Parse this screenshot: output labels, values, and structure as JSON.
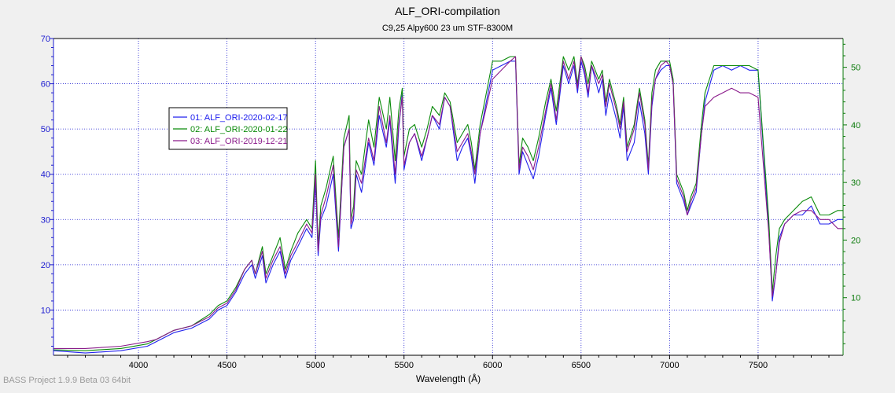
{
  "window": {
    "footer_text": "BASS Project 1.9.9 Beta 03 64bit"
  },
  "chart_data": {
    "type": "line",
    "title": "ALF_ORI-compilation",
    "subtitle": "C9,25 Alpy600 23 um STF-8300M",
    "xlabel": "Wavelength (Å)",
    "xlim": [
      3520,
      7980
    ],
    "ylim_left": [
      0,
      70
    ],
    "ylim_right": [
      0,
      55
    ],
    "x_ticks": [
      "4000",
      "4500",
      "5000",
      "5500",
      "6000",
      "6500",
      "7000",
      "7500"
    ],
    "x_tick_values": [
      4000,
      4500,
      5000,
      5500,
      6000,
      6500,
      7000,
      7500
    ],
    "y_ticks_left": [
      "10",
      "20",
      "30",
      "40",
      "50",
      "60",
      "70"
    ],
    "y_tick_values_left": [
      10,
      20,
      30,
      40,
      50,
      60,
      70
    ],
    "y_ticks_right": [
      "10",
      "20",
      "30",
      "40",
      "50"
    ],
    "y_tick_values_right": [
      10,
      20,
      30,
      40,
      50
    ],
    "grid": true,
    "legend_position": "upper-left",
    "colors": {
      "left_axis": "#1c1cd0",
      "right_axis": "#0a7a0a",
      "grid": "#1c1cd0",
      "frame": "#000000"
    },
    "series": [
      {
        "name": "01: ALF_ORI-2020-02-17",
        "color": "#2020ee",
        "x": [
          3520,
          3700,
          3900,
          4050,
          4100,
          4200,
          4300,
          4400,
          4450,
          4500,
          4550,
          4600,
          4640,
          4660,
          4700,
          4720,
          4760,
          4800,
          4830,
          4860,
          4900,
          4950,
          4980,
          5000,
          5015,
          5030,
          5060,
          5100,
          5130,
          5160,
          5190,
          5200,
          5215,
          5230,
          5260,
          5300,
          5330,
          5360,
          5400,
          5420,
          5450,
          5470,
          5490,
          5500,
          5530,
          5560,
          5600,
          5630,
          5660,
          5700,
          5730,
          5760,
          5800,
          5830,
          5860,
          5880,
          5900,
          5930,
          5960,
          6000,
          6050,
          6100,
          6130,
          6150,
          6170,
          6200,
          6230,
          6260,
          6300,
          6330,
          6360,
          6400,
          6430,
          6460,
          6480,
          6500,
          6520,
          6540,
          6560,
          6600,
          6620,
          6640,
          6660,
          6700,
          6720,
          6740,
          6760,
          6800,
          6830,
          6860,
          6880,
          6900,
          6920,
          6950,
          6980,
          7000,
          7020,
          7040,
          7060,
          7080,
          7100,
          7120,
          7150,
          7180,
          7200,
          7250,
          7300,
          7350,
          7400,
          7450,
          7500,
          7560,
          7580,
          7600,
          7620,
          7650,
          7700,
          7750,
          7800,
          7850,
          7900,
          7950,
          7980
        ],
        "y": [
          1,
          0.5,
          1,
          2,
          3,
          5,
          6,
          8,
          10,
          11,
          14,
          18,
          20,
          17,
          22,
          16,
          20,
          23,
          17,
          21,
          24,
          28,
          26,
          38,
          22,
          30,
          33,
          40,
          23,
          46,
          50,
          28,
          30,
          40,
          36,
          47,
          42,
          53,
          46,
          52,
          38,
          50,
          58,
          41,
          47,
          49,
          43,
          48,
          53,
          50,
          57,
          55,
          43,
          46,
          48,
          44,
          38,
          49,
          55,
          63,
          64,
          65,
          65,
          40,
          45,
          42,
          39,
          44,
          53,
          59,
          51,
          64,
          60,
          64,
          58,
          65,
          62,
          57,
          64,
          58,
          61,
          53,
          58,
          52,
          48,
          55,
          43,
          47,
          56,
          49,
          40,
          55,
          61,
          63,
          64,
          64,
          60,
          38,
          36,
          34,
          31,
          33,
          36,
          49,
          56,
          63,
          64,
          63,
          64,
          63,
          63,
          28,
          12,
          18,
          26,
          29,
          31,
          31,
          33,
          29,
          29,
          30,
          30
        ]
      },
      {
        "name": "02: ALF_ORI-2020-01-22",
        "color": "#0a8a0a",
        "x": [
          3520,
          3700,
          3900,
          4050,
          4100,
          4200,
          4300,
          4400,
          4450,
          4500,
          4550,
          4600,
          4640,
          4660,
          4700,
          4720,
          4760,
          4800,
          4830,
          4860,
          4900,
          4950,
          4980,
          5000,
          5015,
          5030,
          5060,
          5100,
          5130,
          5160,
          5190,
          5200,
          5215,
          5230,
          5260,
          5300,
          5330,
          5360,
          5400,
          5420,
          5450,
          5470,
          5490,
          5500,
          5530,
          5560,
          5600,
          5630,
          5660,
          5700,
          5730,
          5760,
          5800,
          5830,
          5860,
          5880,
          5900,
          5930,
          5960,
          6000,
          6050,
          6100,
          6130,
          6150,
          6170,
          6200,
          6230,
          6260,
          6300,
          6330,
          6360,
          6400,
          6430,
          6460,
          6480,
          6500,
          6520,
          6540,
          6560,
          6600,
          6620,
          6640,
          6660,
          6700,
          6720,
          6740,
          6760,
          6800,
          6830,
          6860,
          6880,
          6900,
          6920,
          6950,
          6980,
          7000,
          7020,
          7040,
          7060,
          7080,
          7100,
          7120,
          7150,
          7180,
          7200,
          7250,
          7300,
          7350,
          7400,
          7450,
          7500,
          7560,
          7580,
          7600,
          7620,
          7650,
          7700,
          7750,
          7800,
          7850,
          7900,
          7950,
          7980
        ],
        "y": [
          1.2,
          1,
          1.5,
          2.5,
          3.5,
          5.5,
          6.5,
          9,
          11,
          12,
          15,
          19,
          21,
          18,
          24,
          18,
          22,
          26,
          19,
          23,
          27,
          30,
          28,
          43,
          24,
          33,
          37,
          44,
          26,
          48,
          53,
          30,
          33,
          43,
          40,
          52,
          46,
          57,
          50,
          57,
          43,
          54,
          59,
          44,
          50,
          51,
          46,
          50,
          55,
          53,
          58,
          56,
          47,
          49,
          51,
          47,
          41,
          51,
          57,
          65,
          65,
          66,
          66,
          42,
          48,
          46,
          43,
          48,
          56,
          61,
          54,
          66,
          63,
          66,
          60,
          66,
          64,
          60,
          65,
          61,
          63,
          56,
          61,
          55,
          51,
          57,
          46,
          51,
          59,
          52,
          42,
          58,
          63,
          65,
          65,
          65,
          61,
          40,
          38,
          36,
          32,
          35,
          38,
          51,
          58,
          64,
          64,
          64,
          64,
          64,
          63,
          30,
          14,
          22,
          28,
          30,
          32,
          34,
          35,
          31,
          31,
          32,
          32
        ]
      },
      {
        "name": "03: ALF_ORI-2019-12-21",
        "color": "#8a1a8a",
        "x": [
          3520,
          3700,
          3900,
          4050,
          4100,
          4200,
          4300,
          4400,
          4450,
          4500,
          4550,
          4600,
          4640,
          4660,
          4700,
          4720,
          4760,
          4800,
          4830,
          4860,
          4900,
          4950,
          4980,
          5000,
          5015,
          5030,
          5060,
          5100,
          5130,
          5160,
          5190,
          5200,
          5215,
          5230,
          5260,
          5300,
          5330,
          5360,
          5400,
          5420,
          5450,
          5470,
          5490,
          5500,
          5530,
          5560,
          5600,
          5630,
          5660,
          5700,
          5730,
          5760,
          5800,
          5830,
          5860,
          5880,
          5900,
          5930,
          5960,
          6000,
          6050,
          6100,
          6130,
          6150,
          6170,
          6200,
          6230,
          6260,
          6300,
          6330,
          6360,
          6400,
          6430,
          6460,
          6480,
          6500,
          6520,
          6540,
          6560,
          6600,
          6620,
          6640,
          6660,
          6700,
          6720,
          6740,
          6760,
          6800,
          6830,
          6860,
          6880,
          6900,
          6920,
          6950,
          6980,
          7000,
          7020,
          7040,
          7060,
          7080,
          7100,
          7120,
          7150,
          7180,
          7200,
          7250,
          7300,
          7350,
          7400,
          7450,
          7500,
          7560,
          7580,
          7600,
          7620,
          7650,
          7700,
          7750,
          7800,
          7850,
          7900,
          7950,
          7980
        ],
        "y": [
          1.5,
          1.5,
          2,
          3,
          3.5,
          5.5,
          6.5,
          8.5,
          10.5,
          11.5,
          14.5,
          19,
          21,
          18,
          23,
          17,
          21,
          24,
          18,
          22,
          25,
          29,
          27,
          40,
          23,
          31,
          35,
          42,
          24,
          46,
          50,
          29,
          31,
          41,
          38,
          48,
          43,
          55,
          47,
          53,
          40,
          51,
          57,
          42,
          47,
          49,
          44,
          48,
          53,
          51,
          57,
          55,
          45,
          47,
          49,
          45,
          40,
          49,
          54,
          61,
          63,
          65,
          66,
          41,
          46,
          44,
          41,
          46,
          54,
          60,
          52,
          65,
          61,
          65,
          59,
          66,
          63,
          58,
          64,
          60,
          62,
          55,
          60,
          54,
          50,
          56,
          45,
          50,
          58,
          51,
          41,
          56,
          61,
          64,
          65,
          64,
          60,
          39,
          37,
          35,
          31,
          34,
          37,
          49,
          55,
          57,
          58,
          59,
          58,
          58,
          57,
          27,
          13,
          18,
          25,
          29,
          31,
          32,
          32,
          30,
          30,
          28,
          28
        ]
      }
    ]
  }
}
